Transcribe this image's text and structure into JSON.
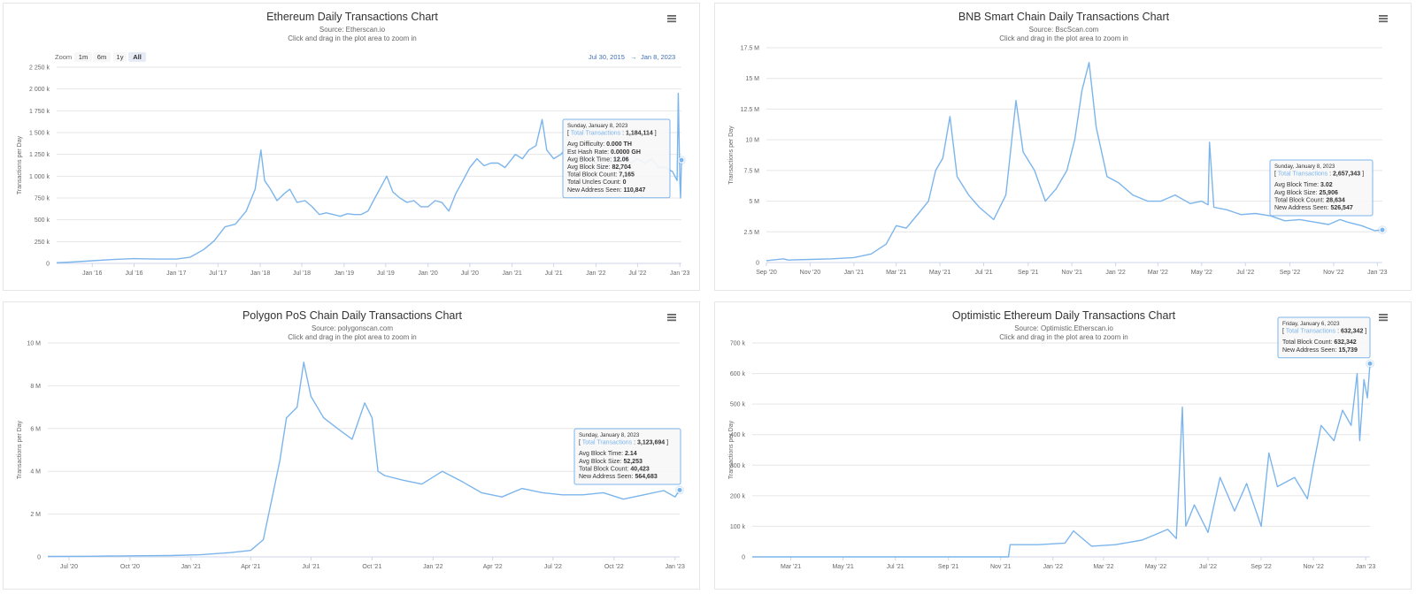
{
  "chart_data": [
    {
      "type": "line",
      "title": "Ethereum Daily Transactions Chart",
      "subtitle": "Source: Etherscan.io",
      "subtitle2": "Click and drag in the plot area to zoom in",
      "ylabel": "Transactions per Day",
      "ylim": [
        0,
        2250000
      ],
      "yticks": [
        0,
        250000,
        500000,
        750000,
        1000000,
        1250000,
        1500000,
        1750000,
        2000000,
        2250000
      ],
      "yticklabels": [
        "0",
        "250 k",
        "500 k",
        "750 k",
        "1 000 k",
        "1 250 k",
        "1 500 k",
        "1 750 k",
        "2 000 k",
        "2 250 k"
      ],
      "xlim": [
        "2015-07-30",
        "2023-01-08"
      ],
      "xticks": [
        "2016-01-01",
        "2016-07-01",
        "2017-01-01",
        "2017-07-01",
        "2018-01-01",
        "2018-07-01",
        "2019-01-01",
        "2019-07-01",
        "2020-01-01",
        "2020-07-01",
        "2021-01-01",
        "2021-07-01",
        "2022-01-01",
        "2022-07-01",
        "2023-01-01"
      ],
      "xticklabels": [
        "Jan '16",
        "Jul '16",
        "Jan '17",
        "Jul '17",
        "Jan '18",
        "Jul '18",
        "Jan '19",
        "Jul '19",
        "Jan '20",
        "Jul '20",
        "Jan '21",
        "Jul '21",
        "Jan '22",
        "Jul '22",
        "Jan '23"
      ],
      "zoom": {
        "label": "Zoom",
        "buttons": [
          "1m",
          "6m",
          "1y",
          "All"
        ],
        "active": "All"
      },
      "range": {
        "from": "Jul 30, 2015",
        "arrow": "→",
        "to": "Jan 8, 2023"
      },
      "series": [
        {
          "color": "#7cb5ec",
          "x": [
            "2015-07-30",
            "2015-10-01",
            "2016-01-01",
            "2016-04-01",
            "2016-07-01",
            "2016-10-01",
            "2017-01-01",
            "2017-03-01",
            "2017-05-01",
            "2017-06-15",
            "2017-08-01",
            "2017-09-15",
            "2017-11-01",
            "2017-12-10",
            "2018-01-04",
            "2018-01-20",
            "2018-02-15",
            "2018-03-15",
            "2018-04-15",
            "2018-05-10",
            "2018-06-10",
            "2018-07-15",
            "2018-08-15",
            "2018-09-15",
            "2018-10-15",
            "2018-11-15",
            "2018-12-15",
            "2019-01-15",
            "2019-02-15",
            "2019-03-15",
            "2019-04-15",
            "2019-05-15",
            "2019-06-15",
            "2019-07-05",
            "2019-08-01",
            "2019-09-01",
            "2019-10-01",
            "2019-11-01",
            "2019-12-01",
            "2020-01-01",
            "2020-02-01",
            "2020-03-01",
            "2020-04-01",
            "2020-05-01",
            "2020-06-01",
            "2020-07-01",
            "2020-08-01",
            "2020-09-01",
            "2020-10-01",
            "2020-11-01",
            "2020-12-01",
            "2021-01-01",
            "2021-01-15",
            "2021-02-15",
            "2021-03-15",
            "2021-04-15",
            "2021-05-12",
            "2021-06-01",
            "2021-07-01",
            "2021-08-01",
            "2021-09-01",
            "2021-10-01",
            "2021-11-01",
            "2021-12-01",
            "2022-01-01",
            "2022-02-01",
            "2022-03-01",
            "2022-04-01",
            "2022-05-01",
            "2022-06-01",
            "2022-07-01",
            "2022-08-01",
            "2022-09-01",
            "2022-10-01",
            "2022-11-01",
            "2022-12-01",
            "2022-12-20",
            "2022-12-25",
            "2023-01-01",
            "2023-01-04",
            "2023-01-08"
          ],
          "y": [
            8000,
            15000,
            30000,
            45000,
            55000,
            50000,
            50000,
            70000,
            160000,
            260000,
            420000,
            450000,
            600000,
            850000,
            1300000,
            950000,
            850000,
            720000,
            800000,
            850000,
            700000,
            720000,
            650000,
            560000,
            580000,
            560000,
            540000,
            570000,
            560000,
            560000,
            600000,
            750000,
            900000,
            1000000,
            820000,
            750000,
            700000,
            720000,
            650000,
            650000,
            720000,
            700000,
            600000,
            800000,
            950000,
            1100000,
            1200000,
            1120000,
            1150000,
            1150000,
            1100000,
            1200000,
            1250000,
            1200000,
            1300000,
            1350000,
            1650000,
            1300000,
            1200000,
            1250000,
            1350000,
            1250000,
            1200000,
            1200000,
            1150000,
            1100000,
            1150000,
            1200000,
            1250000,
            1150000,
            1200000,
            1150000,
            1200000,
            1100000,
            1100000,
            1050000,
            950000,
            1950000,
            950000,
            750000,
            1184114
          ]
        }
      ],
      "tooltip": {
        "date": "Sunday, January 8, 2023",
        "series_label": "Total Transactions",
        "series_value": "1,184,114",
        "rows": [
          {
            "label": "Avg Difficulty:",
            "value": "0.000 TH"
          },
          {
            "label": "Est Hash Rate:",
            "value": "0.0000 GH"
          },
          {
            "label": "Avg Block Time:",
            "value": "12.06"
          },
          {
            "label": "Avg Block Size:",
            "value": "82,704"
          },
          {
            "label": "Total Block Count:",
            "value": "7,165"
          },
          {
            "label": "Total Uncles Count:",
            "value": "0"
          },
          {
            "label": "New Address Seen:",
            "value": "110,847"
          }
        ]
      }
    },
    {
      "type": "line",
      "title": "BNB Smart Chain Daily Transactions Chart",
      "subtitle": "Source: BscScan.com",
      "subtitle2": "Click and drag in the plot area to zoom in",
      "ylabel": "Transactions per Day",
      "ylim": [
        0,
        17500000
      ],
      "yticks": [
        0,
        2500000,
        5000000,
        7500000,
        10000000,
        12500000,
        15000000,
        17500000
      ],
      "yticklabels": [
        "0",
        "2.5 M",
        "5 M",
        "7.5 M",
        "10 M",
        "12.5 M",
        "15 M",
        "17.5 M"
      ],
      "xlim": [
        "2020-09-01",
        "2023-01-08"
      ],
      "xticks": [
        "2020-09-01",
        "2020-11-01",
        "2021-01-01",
        "2021-03-01",
        "2021-05-01",
        "2021-07-01",
        "2021-09-01",
        "2021-11-01",
        "2022-01-01",
        "2022-03-01",
        "2022-05-01",
        "2022-07-01",
        "2022-09-01",
        "2022-11-01",
        "2023-01-01"
      ],
      "xticklabels": [
        "Sep '20",
        "Nov '20",
        "Jan '21",
        "Mar '21",
        "May '21",
        "Jul '21",
        "Sep '21",
        "Nov '21",
        "Jan '22",
        "Mar '22",
        "May '22",
        "Jul '22",
        "Sep '22",
        "Nov '22",
        "Jan '23"
      ],
      "series": [
        {
          "color": "#7cb5ec",
          "x": [
            "2020-09-01",
            "2020-09-25",
            "2020-10-01",
            "2020-11-01",
            "2020-12-01",
            "2021-01-01",
            "2021-01-25",
            "2021-02-15",
            "2021-03-01",
            "2021-03-15",
            "2021-04-01",
            "2021-04-15",
            "2021-04-25",
            "2021-05-05",
            "2021-05-15",
            "2021-05-25",
            "2021-06-10",
            "2021-06-25",
            "2021-07-15",
            "2021-08-01",
            "2021-08-15",
            "2021-08-25",
            "2021-09-10",
            "2021-09-25",
            "2021-10-10",
            "2021-10-25",
            "2021-11-05",
            "2021-11-15",
            "2021-11-25",
            "2021-12-05",
            "2021-12-20",
            "2022-01-05",
            "2022-01-25",
            "2022-02-15",
            "2022-03-05",
            "2022-03-25",
            "2022-04-15",
            "2022-05-01",
            "2022-05-10",
            "2022-05-12",
            "2022-05-18",
            "2022-06-05",
            "2022-06-25",
            "2022-07-15",
            "2022-08-05",
            "2022-08-25",
            "2022-09-15",
            "2022-10-05",
            "2022-10-25",
            "2022-11-10",
            "2022-11-20",
            "2022-12-10",
            "2022-12-28",
            "2023-01-08"
          ],
          "y": [
            150000,
            300000,
            200000,
            250000,
            300000,
            400000,
            700000,
            1500000,
            3000000,
            2800000,
            4000000,
            5000000,
            7500000,
            8500000,
            11900000,
            7000000,
            5500000,
            4500000,
            3500000,
            5500000,
            13200000,
            9000000,
            7500000,
            5000000,
            6000000,
            7500000,
            10000000,
            14000000,
            16300000,
            11000000,
            7000000,
            6500000,
            5500000,
            5000000,
            5000000,
            5500000,
            4800000,
            5000000,
            4700000,
            9800000,
            4500000,
            4300000,
            3900000,
            4000000,
            3800000,
            3400000,
            3500000,
            3300000,
            3100000,
            3500000,
            3300000,
            3000000,
            2600000,
            2657343
          ]
        }
      ],
      "tooltip": {
        "date": "Sunday, January 8, 2023",
        "series_label": "Total Transactions",
        "series_value": "2,657,343",
        "rows": [
          {
            "label": "Avg Block Time:",
            "value": "3.02"
          },
          {
            "label": "Avg Block Size:",
            "value": "25,906"
          },
          {
            "label": "Total Block Count:",
            "value": "28,634"
          },
          {
            "label": "New Address Seen:",
            "value": "526,547"
          }
        ]
      }
    },
    {
      "type": "line",
      "title": "Polygon PoS Chain Daily Transactions Chart",
      "subtitle": "Source: polygonscan.com",
      "subtitle2": "Click and drag in the plot area to zoom in",
      "ylabel": "Transactions per Day",
      "ylim": [
        0,
        10000000
      ],
      "yticks": [
        0,
        2000000,
        4000000,
        6000000,
        8000000,
        10000000
      ],
      "yticklabels": [
        "0",
        "2 M",
        "4 M",
        "6 M",
        "8 M",
        "10 M"
      ],
      "xlim": [
        "2020-05-30",
        "2023-01-08"
      ],
      "xticks": [
        "2020-07-01",
        "2020-10-01",
        "2021-01-01",
        "2021-04-01",
        "2021-07-01",
        "2021-10-01",
        "2022-01-01",
        "2022-04-01",
        "2022-07-01",
        "2022-10-01",
        "2023-01-01"
      ],
      "xticklabels": [
        "Jul '20",
        "Oct '20",
        "Jan '21",
        "Apr '21",
        "Jul '21",
        "Oct '21",
        "Jan '22",
        "Apr '22",
        "Jul '22",
        "Oct '22",
        "Jan '23"
      ],
      "series": [
        {
          "color": "#7cb5ec",
          "x": [
            "2020-05-30",
            "2020-08-01",
            "2020-10-01",
            "2020-12-01",
            "2021-01-15",
            "2021-03-01",
            "2021-04-01",
            "2021-04-20",
            "2021-05-05",
            "2021-05-15",
            "2021-05-25",
            "2021-06-10",
            "2021-06-20",
            "2021-07-01",
            "2021-07-20",
            "2021-08-10",
            "2021-09-01",
            "2021-09-20",
            "2021-10-01",
            "2021-10-10",
            "2021-10-20",
            "2021-11-15",
            "2021-12-15",
            "2022-01-15",
            "2022-02-15",
            "2022-03-15",
            "2022-04-15",
            "2022-05-15",
            "2022-06-15",
            "2022-07-15",
            "2022-08-15",
            "2022-09-15",
            "2022-10-15",
            "2022-11-15",
            "2022-12-15",
            "2023-01-01",
            "2023-01-08"
          ],
          "y": [
            20000,
            30000,
            50000,
            60000,
            100000,
            200000,
            300000,
            800000,
            3000000,
            4500000,
            6500000,
            7000000,
            9100000,
            7500000,
            6500000,
            6000000,
            5500000,
            7200000,
            6500000,
            4000000,
            3800000,
            3600000,
            3400000,
            4000000,
            3500000,
            3000000,
            2800000,
            3200000,
            3000000,
            2900000,
            2900000,
            3000000,
            2700000,
            2900000,
            3100000,
            2800000,
            3123694
          ]
        }
      ],
      "tooltip": {
        "date": "Sunday, January 8, 2023",
        "series_label": "Total Transactions",
        "series_value": "3,123,694",
        "rows": [
          {
            "label": "Avg Block Time:",
            "value": "2.14"
          },
          {
            "label": "Avg Block Size:",
            "value": "52,253"
          },
          {
            "label": "Total Block Count:",
            "value": "40,423"
          },
          {
            "label": "New Address Seen:",
            "value": "564,683"
          }
        ]
      }
    },
    {
      "type": "line",
      "title": "Optimistic Ethereum Daily Transactions Chart",
      "subtitle": "Source: Optimistic.Etherscan.io",
      "subtitle2": "Click and drag in the plot area to zoom in",
      "ylabel": "Transactions per Day",
      "ylim": [
        0,
        700000
      ],
      "yticks": [
        0,
        100000,
        200000,
        300000,
        400000,
        500000,
        600000,
        700000
      ],
      "yticklabels": [
        "0",
        "100 k",
        "200 k",
        "300 k",
        "400 k",
        "500 k",
        "600 k",
        "700 k"
      ],
      "xlim": [
        "2021-01-15",
        "2023-01-06"
      ],
      "xticks": [
        "2021-03-01",
        "2021-05-01",
        "2021-07-01",
        "2021-09-01",
        "2021-11-01",
        "2022-01-01",
        "2022-03-01",
        "2022-05-01",
        "2022-07-01",
        "2022-09-01",
        "2022-11-01",
        "2023-01-01"
      ],
      "xticklabels": [
        "Mar '21",
        "May '21",
        "Jul '21",
        "Sep '21",
        "Nov '21",
        "Jan '22",
        "Mar '22",
        "May '22",
        "Jul '22",
        "Sep '22",
        "Nov '22",
        "Jan '23"
      ],
      "series": [
        {
          "color": "#7cb5ec",
          "x": [
            "2021-01-15",
            "2021-11-10",
            "2021-11-12",
            "2021-12-15",
            "2022-01-15",
            "2022-01-25",
            "2022-02-15",
            "2022-03-15",
            "2022-04-15",
            "2022-05-15",
            "2022-05-25",
            "2022-06-01",
            "2022-06-05",
            "2022-06-15",
            "2022-07-01",
            "2022-07-15",
            "2022-08-01",
            "2022-08-15",
            "2022-09-01",
            "2022-09-10",
            "2022-09-20",
            "2022-10-10",
            "2022-10-25",
            "2022-11-01",
            "2022-11-10",
            "2022-11-25",
            "2022-12-05",
            "2022-12-15",
            "2022-12-22",
            "2022-12-25",
            "2022-12-30",
            "2023-01-03",
            "2023-01-06"
          ],
          "y": [
            0,
            0,
            40000,
            40000,
            45000,
            85000,
            35000,
            40000,
            55000,
            90000,
            60000,
            490000,
            100000,
            170000,
            80000,
            260000,
            150000,
            240000,
            100000,
            340000,
            230000,
            260000,
            190000,
            300000,
            430000,
            380000,
            480000,
            430000,
            600000,
            380000,
            580000,
            520000,
            632342
          ]
        }
      ],
      "tooltip": {
        "date": "Friday, January 6, 2023",
        "series_label": "Total Transactions",
        "series_value": "632,342",
        "rows": [
          {
            "label": "Total Block Count:",
            "value": "632,342"
          },
          {
            "label": "New Address Seen:",
            "value": "15,739"
          }
        ]
      }
    }
  ]
}
